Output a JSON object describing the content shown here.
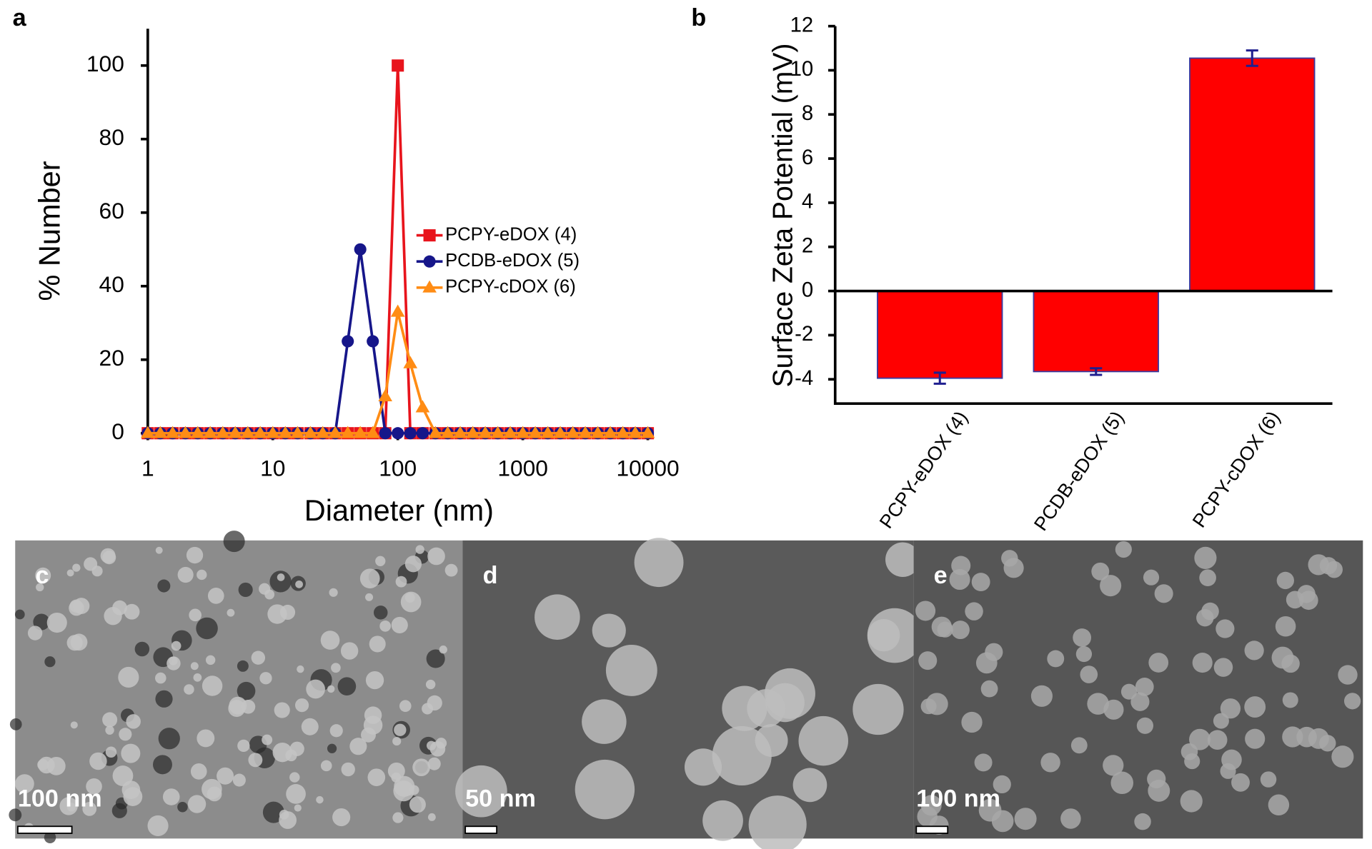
{
  "chart_data": [
    {
      "type": "line",
      "panel": "a",
      "xlabel": "Diameter (nm)",
      "ylabel": "% Number",
      "xscale": "log",
      "xlim": [
        1,
        10800
      ],
      "xticks": [
        1,
        10,
        100,
        1000,
        10000
      ],
      "ylim": [
        0,
        110
      ],
      "yticks": [
        0,
        20,
        40,
        60,
        80,
        100
      ],
      "legend": "right",
      "x": [
        1,
        1.26,
        1.58,
        2,
        2.51,
        3.16,
        3.98,
        5.01,
        6.31,
        7.94,
        10,
        12.6,
        15.8,
        20,
        25.1,
        31.6,
        39.8,
        50.1,
        63.1,
        79.4,
        100,
        126,
        158,
        200,
        251,
        316,
        398,
        501,
        631,
        794,
        1000,
        1259,
        1585,
        1995,
        2512,
        3162,
        3981,
        5012,
        6310,
        7943,
        10000
      ],
      "series": [
        {
          "name": "PCPY-eDOX (4)",
          "color": "#e8141c",
          "marker": "square",
          "values": [
            0,
            0,
            0,
            0,
            0,
            0,
            0,
            0,
            0,
            0,
            0,
            0,
            0,
            0,
            0,
            0,
            0,
            0,
            0,
            0,
            100,
            0,
            0,
            0,
            0,
            0,
            0,
            0,
            0,
            0,
            0,
            0,
            0,
            0,
            0,
            0,
            0,
            0,
            0,
            0,
            0
          ]
        },
        {
          "name": "PCDB-eDOX (5)",
          "color": "#16168a",
          "marker": "circle",
          "values": [
            0,
            0,
            0,
            0,
            0,
            0,
            0,
            0,
            0,
            0,
            0,
            0,
            0,
            0,
            0,
            0,
            25,
            50,
            25,
            0,
            0,
            0,
            0,
            0,
            0,
            0,
            0,
            0,
            0,
            0,
            0,
            0,
            0,
            0,
            0,
            0,
            0,
            0,
            0,
            0,
            0
          ]
        },
        {
          "name": "PCPY-cDOX (6)",
          "color": "#ff8c14",
          "marker": "triangle",
          "values": [
            0,
            0,
            0,
            0,
            0,
            0,
            0,
            0,
            0,
            0,
            0,
            0,
            0,
            0,
            0,
            0,
            0,
            0,
            0,
            10,
            33,
            19,
            7,
            0,
            0,
            0,
            0,
            0,
            0,
            0,
            0,
            0,
            0,
            0,
            0,
            0,
            0,
            0,
            0,
            0,
            0
          ]
        }
      ]
    },
    {
      "type": "bar",
      "panel": "b",
      "ylabel": "Surface Zeta Potential (mV)",
      "categories": [
        "PCPY-eDOX (4)",
        "PCDB-eDOX (5)",
        "PCPY-cDOX (6)"
      ],
      "values": [
        -3.95,
        -3.65,
        10.55
      ],
      "errors": [
        0.25,
        0.15,
        0.35
      ],
      "color": "#ff0000",
      "edge_color": "#3a3aa0",
      "error_color": "#1f1f8f",
      "ylim": [
        -5.1,
        12
      ],
      "yticks": [
        -4,
        -2,
        0,
        2,
        4,
        6,
        8,
        10,
        12
      ]
    }
  ],
  "images": [
    {
      "label": "c",
      "scale_bar": "100 nm"
    },
    {
      "label": "d",
      "scale_bar": "50 nm"
    },
    {
      "label": "e",
      "scale_bar": "100 nm"
    }
  ]
}
